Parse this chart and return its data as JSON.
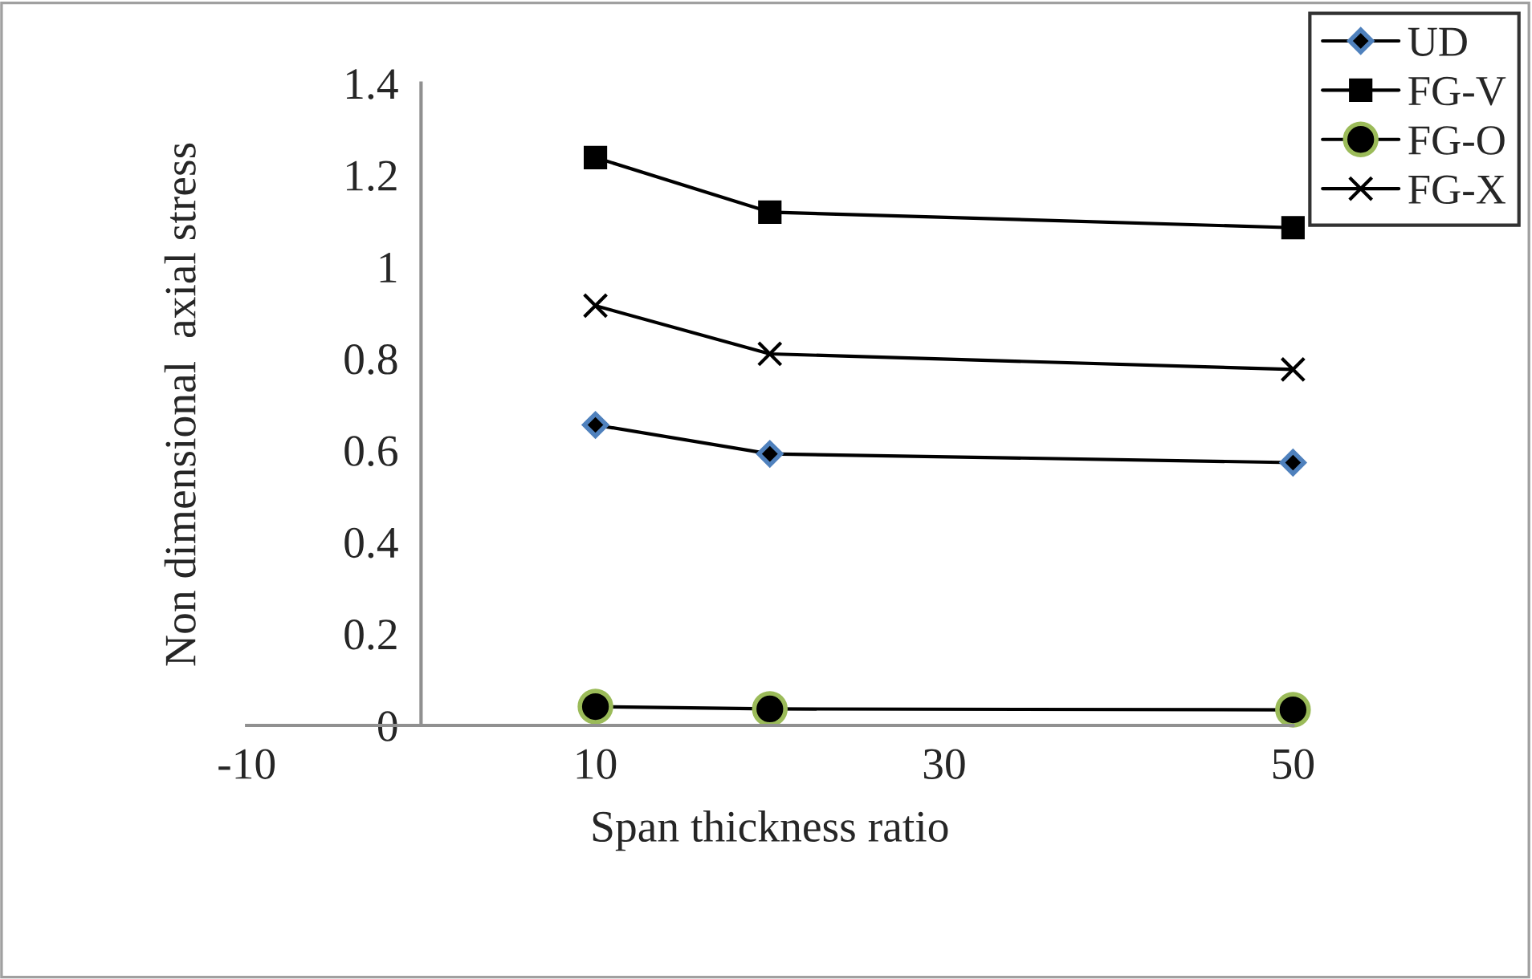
{
  "chart_data": {
    "type": "line",
    "xlabel": "Span thickness ratio",
    "ylabel": "Non dimensional  axial stress",
    "x": [
      10,
      20,
      50
    ],
    "xlim": [
      -10,
      50
    ],
    "xticks": [
      -10,
      10,
      30,
      50
    ],
    "ylim": [
      0,
      1.4
    ],
    "yticks": [
      0,
      0.2,
      0.4,
      0.6,
      0.8,
      1,
      1.2,
      1.4
    ],
    "grid": false,
    "legend": "top right",
    "series": [
      {
        "name": "UD",
        "color": "#000000",
        "marker": "diamond",
        "values": [
          0.655,
          0.592,
          0.573
        ]
      },
      {
        "name": "FG-V",
        "color": "#000000",
        "marker": "square",
        "values": [
          1.238,
          1.119,
          1.085
        ]
      },
      {
        "name": "FG-O",
        "color": "#000000",
        "marker": "circle",
        "values": [
          0.041,
          0.036,
          0.034
        ]
      },
      {
        "name": "FG-X",
        "color": "#000000",
        "marker": "cross",
        "values": [
          0.915,
          0.81,
          0.776
        ]
      }
    ]
  }
}
